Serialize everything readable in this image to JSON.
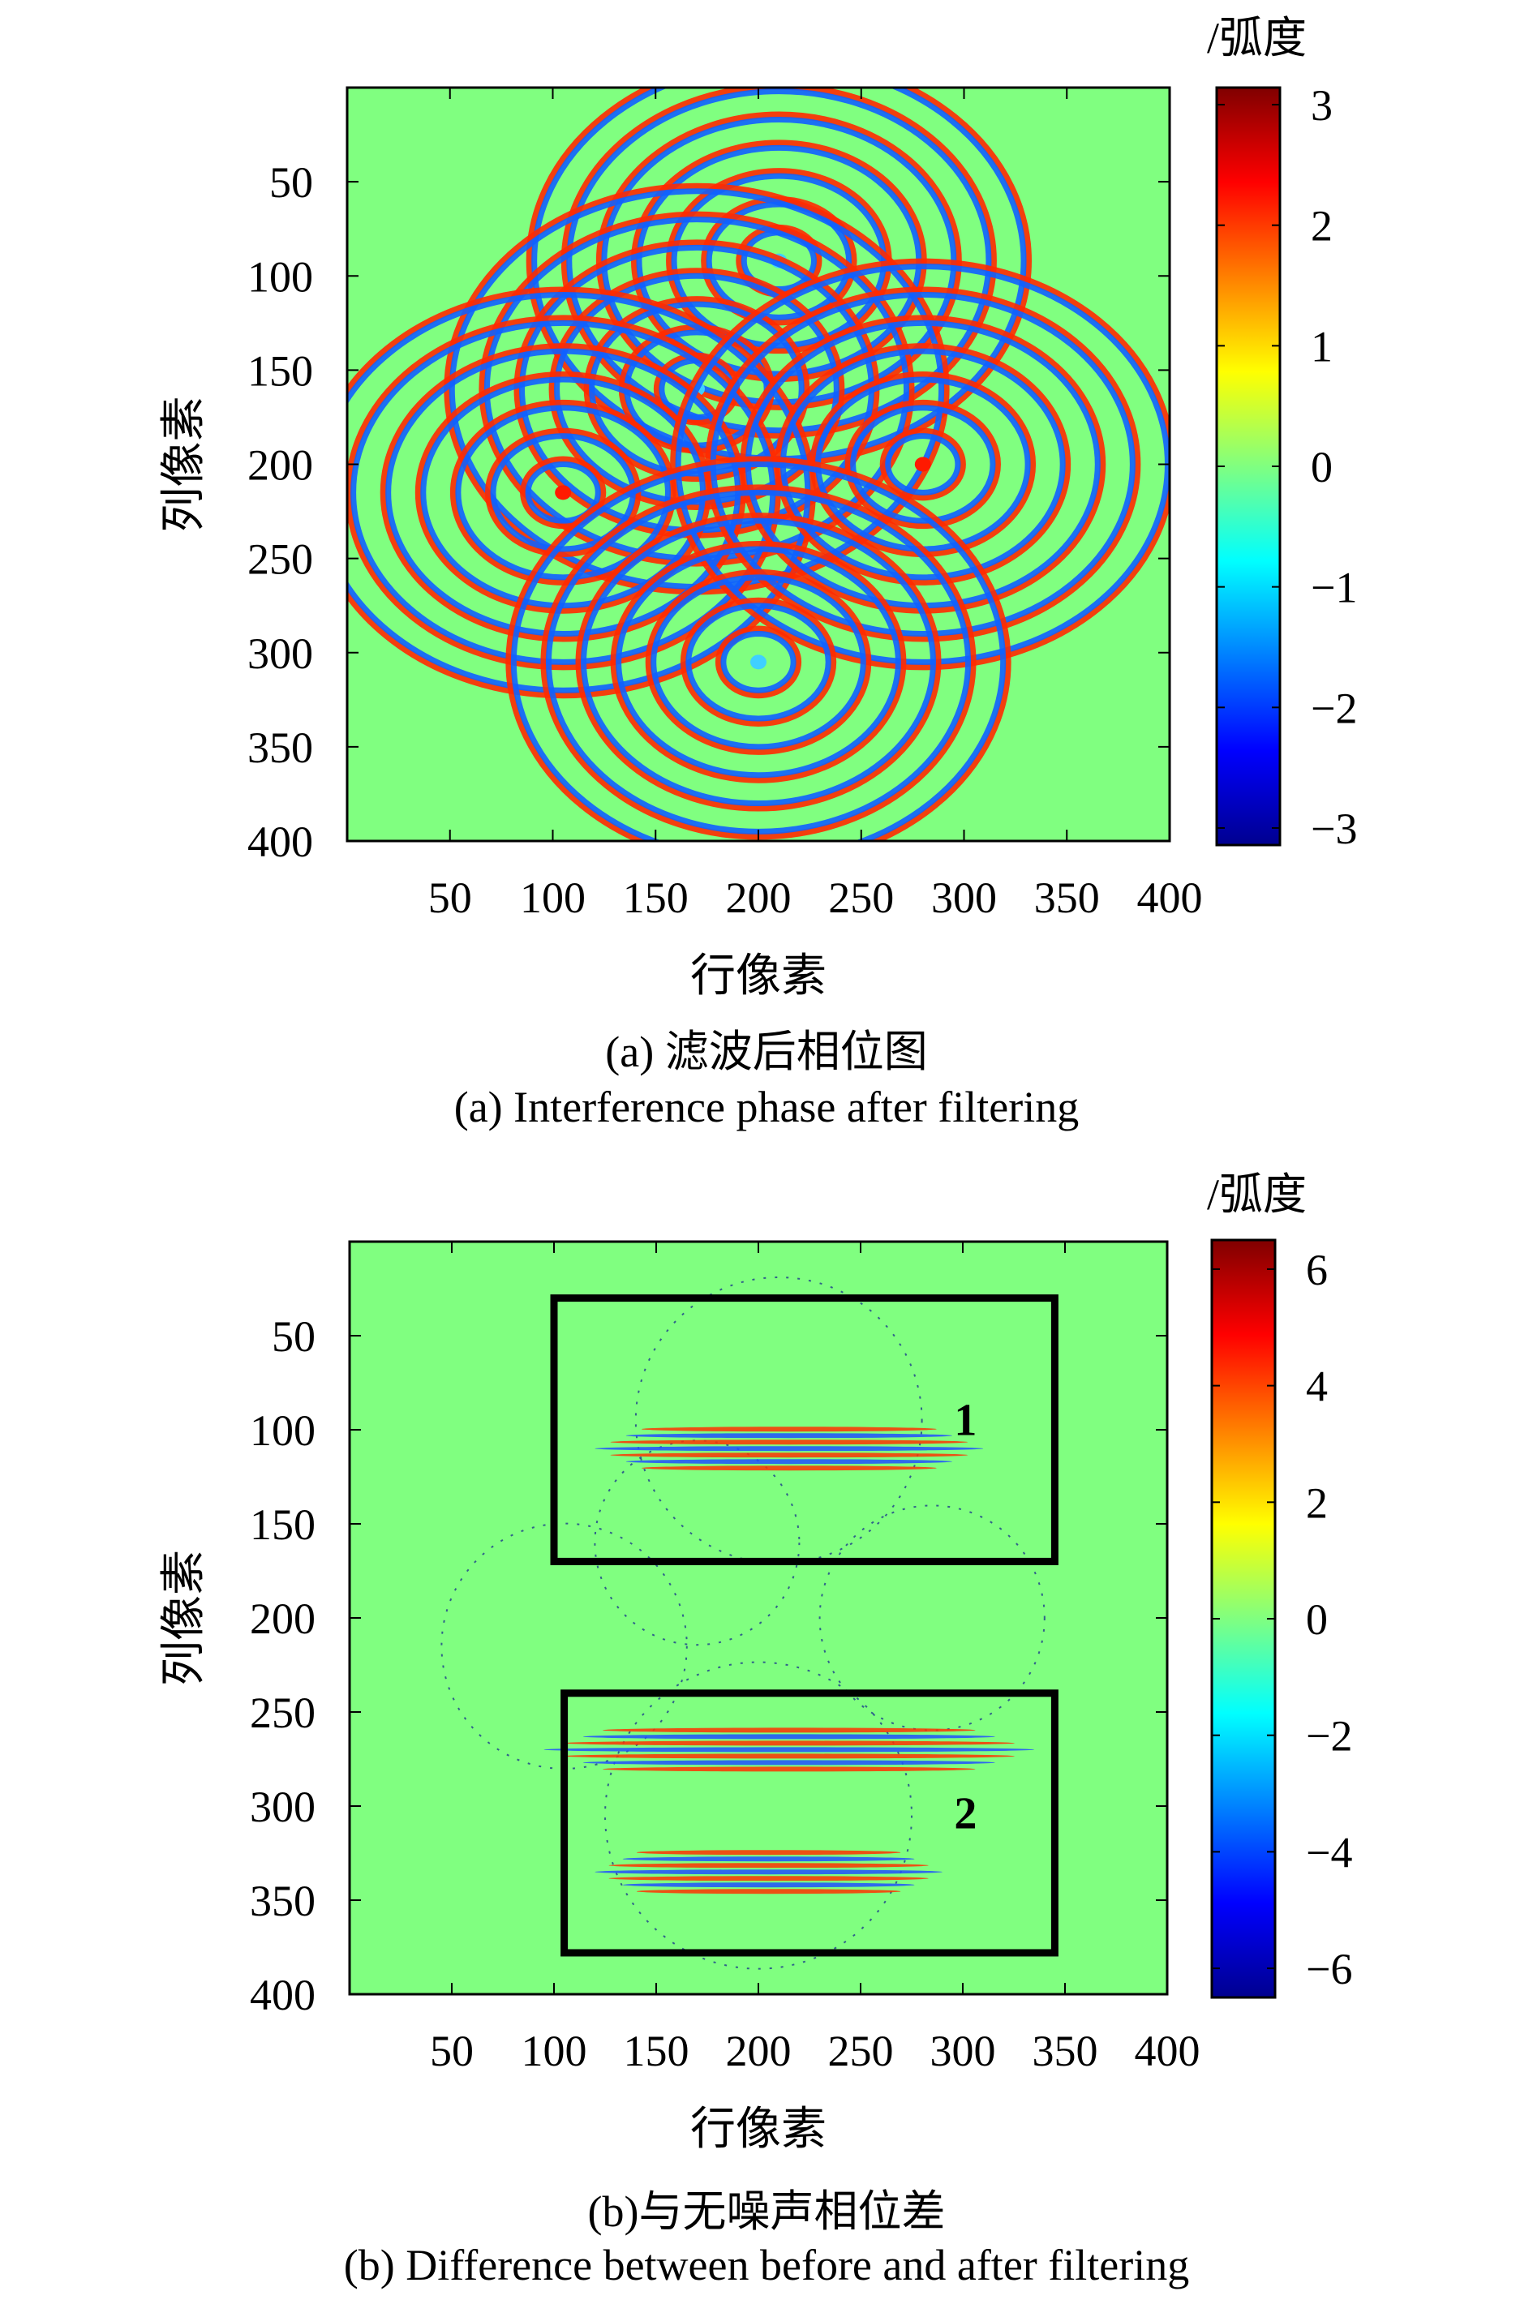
{
  "chart_data": [
    {
      "type": "heatmap",
      "panel": "a",
      "title": "",
      "xlabel": "行像素",
      "ylabel": "列像素",
      "xlim": [
        0,
        400
      ],
      "ylim": [
        400,
        0
      ],
      "xticks": [
        50,
        100,
        150,
        200,
        250,
        300,
        350,
        400
      ],
      "yticks": [
        50,
        100,
        150,
        200,
        250,
        300,
        350,
        400
      ],
      "colorbar": {
        "unit": "/弧度",
        "range": [
          -3.1416,
          3.1416
        ],
        "ticks": [
          3,
          2,
          1,
          0,
          -1,
          -2,
          -3
        ],
        "tick_labels": [
          "3",
          "2",
          "1",
          "0",
          "−1",
          "−2",
          "−3"
        ],
        "colormap": "jet"
      },
      "fringe_centers": [
        {
          "x": 210,
          "y": 92
        },
        {
          "x": 170,
          "y": 160
        },
        {
          "x": 105,
          "y": 215
        },
        {
          "x": 280,
          "y": 200
        },
        {
          "x": 200,
          "y": 305
        }
      ],
      "caption_cn": "(a) 滤波后相位图",
      "caption_en": "(a) Interference phase after filtering"
    },
    {
      "type": "heatmap",
      "panel": "b",
      "title": "",
      "xlabel": "行像素",
      "ylabel": "列像素",
      "xlim": [
        0,
        400
      ],
      "ylim": [
        400,
        0
      ],
      "xticks": [
        50,
        100,
        150,
        200,
        250,
        300,
        350,
        400
      ],
      "yticks": [
        50,
        100,
        150,
        200,
        250,
        300,
        350,
        400
      ],
      "colorbar": {
        "unit": "/弧度",
        "range": [
          -6.5,
          6.5
        ],
        "ticks": [
          6,
          4,
          2,
          0,
          -2,
          -4,
          -6
        ],
        "tick_labels": [
          "6",
          "4",
          "2",
          "0",
          "−2",
          "−4",
          "−6"
        ],
        "colormap": "jet"
      },
      "boxes": [
        {
          "label": "1",
          "x0": 100,
          "x1": 345,
          "y0": 30,
          "y1": 170
        },
        {
          "label": "2",
          "x0": 105,
          "x1": 345,
          "y0": 240,
          "y1": 378
        }
      ],
      "caption_cn": "(b)与无噪声相位差",
      "caption_en": "(b) Difference between before and after filtering"
    }
  ]
}
